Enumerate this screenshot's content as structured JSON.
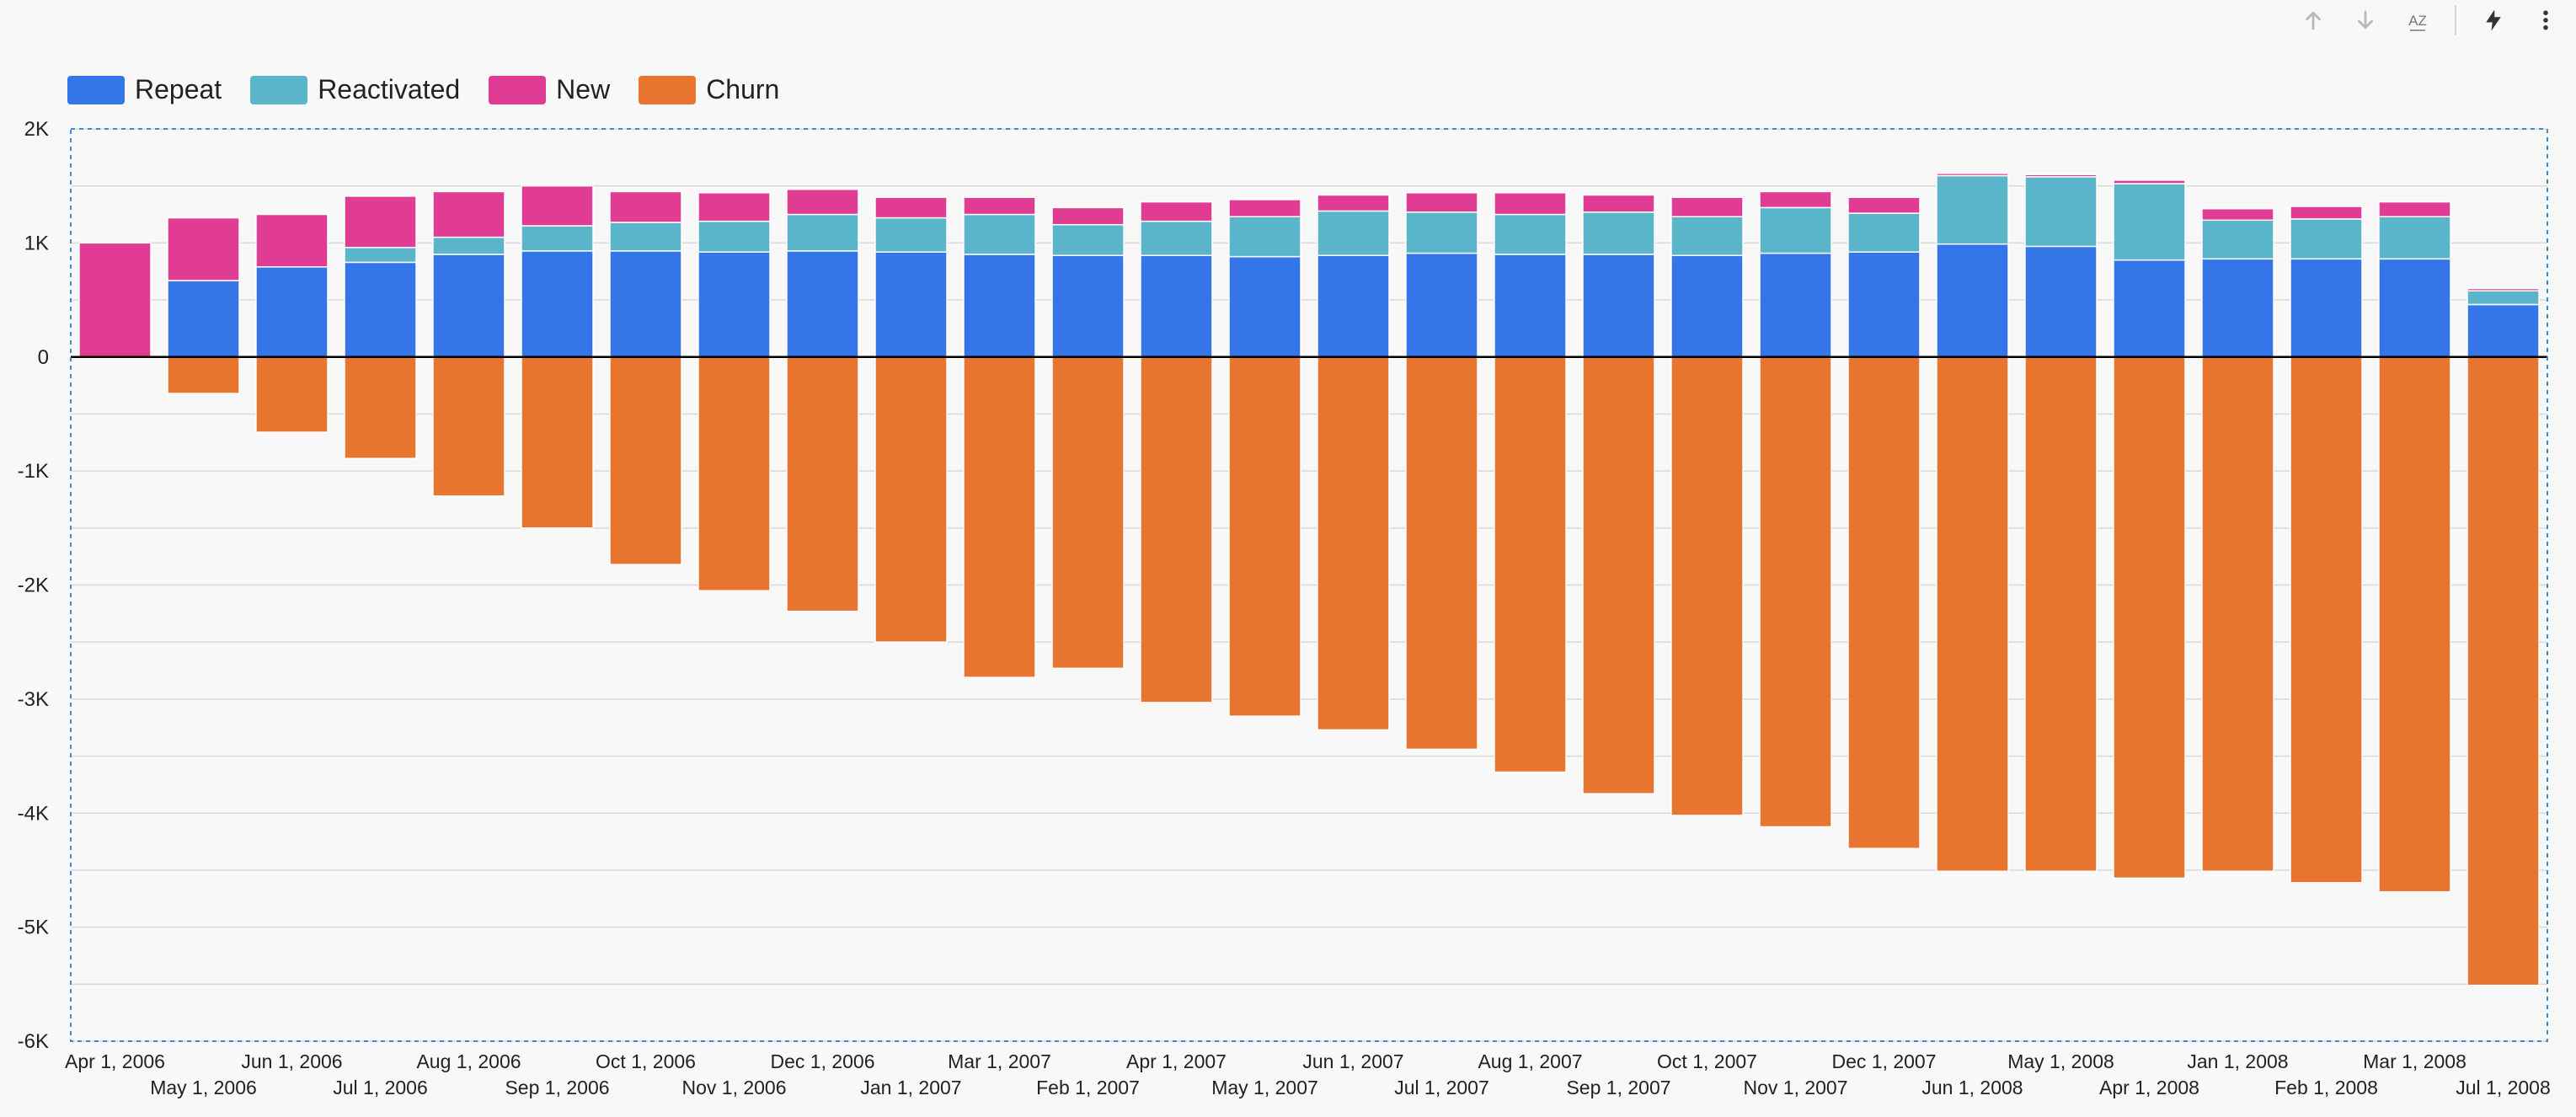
{
  "toolbar": {
    "icons": [
      "arrow-up-icon",
      "arrow-down-icon",
      "sort-az-icon",
      "lightning-icon",
      "more-vert-icon"
    ],
    "sort_label": "AZ"
  },
  "colors": {
    "repeat": "#3476e8",
    "reactivated": "#5ab4ca",
    "new": "#e03c93",
    "churn": "#e77530",
    "grid": "#d9d9d9",
    "zero": "#000000",
    "selection": "#3d8bd6"
  },
  "chart_data": {
    "type": "bar",
    "stacked": true,
    "legend_position": "top-left",
    "grid": true,
    "ylim": [
      -6000,
      2000
    ],
    "yticks": [
      {
        "value": 2000,
        "label": "2K"
      },
      {
        "value": 1000,
        "label": "1K"
      },
      {
        "value": 0,
        "label": "0"
      },
      {
        "value": -1000,
        "label": "-1K"
      },
      {
        "value": -2000,
        "label": "-2K"
      },
      {
        "value": -3000,
        "label": "-3K"
      },
      {
        "value": -4000,
        "label": "-4K"
      },
      {
        "value": -5000,
        "label": "-5K"
      },
      {
        "value": -6000,
        "label": "-6K"
      }
    ],
    "categories": [
      "Apr 1, 2006",
      "May 1, 2006",
      "Jun 1, 2006",
      "Jul 1, 2006",
      "Aug 1, 2006",
      "Sep 1, 2006",
      "Oct 1, 2006",
      "Nov 1, 2006",
      "Dec 1, 2006",
      "Jan 1, 2007",
      "Mar 1, 2007",
      "Feb 1, 2007",
      "Apr 1, 2007",
      "May 1, 2007",
      "Jun 1, 2007",
      "Jul 1, 2007",
      "Aug 1, 2007",
      "Sep 1, 2007",
      "Oct 1, 2007",
      "Nov 1, 2007",
      "Dec 1, 2007",
      "Jun 1, 2008",
      "May 1, 2008",
      "Apr 1, 2008",
      "Jan 1, 2008",
      "Feb 1, 2008",
      "Mar 1, 2008",
      "Jul 1, 2008"
    ],
    "series": [
      {
        "name": "Repeat",
        "values": [
          0,
          670,
          790,
          830,
          900,
          930,
          930,
          920,
          930,
          920,
          900,
          890,
          890,
          880,
          890,
          910,
          900,
          900,
          890,
          910,
          920,
          990,
          970,
          850,
          860,
          860,
          860,
          460
        ]
      },
      {
        "name": "Reactivated",
        "values": [
          0,
          0,
          0,
          130,
          150,
          220,
          250,
          270,
          320,
          300,
          350,
          270,
          300,
          350,
          390,
          360,
          350,
          370,
          340,
          400,
          340,
          600,
          610,
          670,
          340,
          350,
          370,
          120
        ]
      },
      {
        "name": "New",
        "values": [
          1000,
          550,
          460,
          450,
          400,
          350,
          270,
          250,
          220,
          180,
          150,
          150,
          170,
          150,
          140,
          170,
          190,
          150,
          170,
          140,
          140,
          20,
          20,
          30,
          100,
          110,
          130,
          20
        ]
      },
      {
        "name": "Churn",
        "values": [
          0,
          -320,
          -660,
          -890,
          -1220,
          -1500,
          -1820,
          -2050,
          -2230,
          -2500,
          -2810,
          -2730,
          -3030,
          -3150,
          -3270,
          -3440,
          -3640,
          -3830,
          -4020,
          -4120,
          -4310,
          -4510,
          -4510,
          -4570,
          -4510,
          -4610,
          -4690,
          -5510
        ]
      }
    ]
  }
}
